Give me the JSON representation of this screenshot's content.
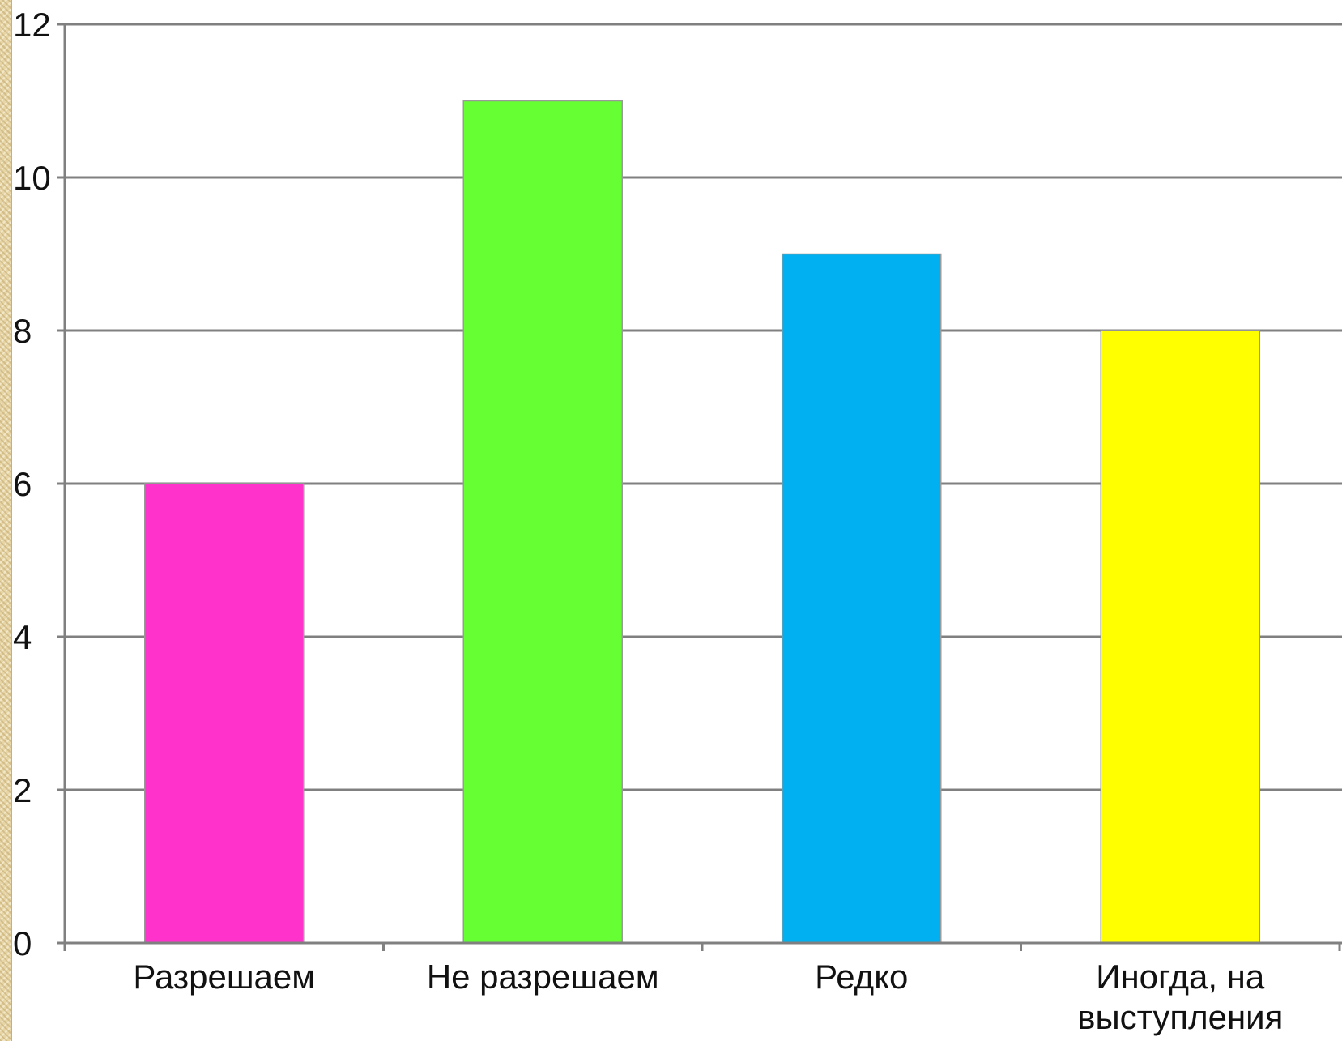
{
  "chart_data": {
    "type": "bar",
    "categories": [
      "Разрешаем",
      "Не разрешаем",
      "Редко",
      "Иногда, на выступления"
    ],
    "category_label_lines": [
      [
        "Разрешаем"
      ],
      [
        "Не разрешаем"
      ],
      [
        "Редко"
      ],
      [
        "Иногда, на",
        "выступления"
      ]
    ],
    "values": [
      6,
      11,
      9,
      8
    ],
    "bar_colors": [
      "#ff33cc",
      "#66ff33",
      "#00b0f0",
      "#ffff00"
    ],
    "ylim": [
      0,
      12
    ],
    "yticks": [
      "0",
      "2",
      "4",
      "6",
      "8",
      "10",
      "12"
    ],
    "grid": true,
    "legend": "none",
    "title": "",
    "xlabel": "",
    "ylabel": ""
  }
}
